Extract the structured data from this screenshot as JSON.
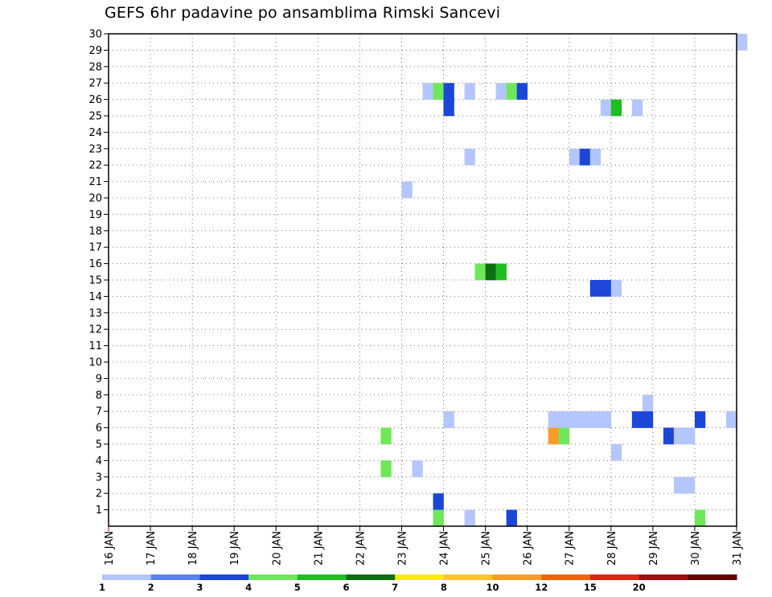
{
  "chart_data": {
    "type": "heatmap",
    "title": "GEFS 6hr padavine po ansamblima Rimski Sancevi",
    "xlabel": "",
    "ylabel": "",
    "x_tick_labels": [
      "16 JAN",
      "17 JAN",
      "18 JAN",
      "19 JAN",
      "20 JAN",
      "21 JAN",
      "22 JAN",
      "23 JAN",
      "24 JAN",
      "25 JAN",
      "26 JAN",
      "27 JAN",
      "28 JAN",
      "29 JAN",
      "30 JAN",
      "31 JAN"
    ],
    "y_tick_labels": [
      "1",
      "2",
      "3",
      "4",
      "5",
      "6",
      "7",
      "8",
      "9",
      "10",
      "11",
      "12",
      "13",
      "14",
      "15",
      "16",
      "17",
      "18",
      "19",
      "20",
      "21",
      "22",
      "23",
      "24",
      "25",
      "26",
      "27",
      "28",
      "29",
      "30"
    ],
    "xlim_days": [
      0,
      15
    ],
    "ylim": [
      0,
      30
    ],
    "grid": "dotted",
    "colorbar": {
      "position": "bottom",
      "labels": [
        "1",
        "2",
        "3",
        "4",
        "5",
        "6",
        "7",
        "8",
        "10",
        "12",
        "15",
        "20"
      ],
      "colors": [
        "#b4c6ff",
        "#5a82ee",
        "#1c46d8",
        "#6ee85a",
        "#1fbf22",
        "#0f6e14",
        "#ffec00",
        "#ffc232",
        "#ff9b28",
        "#f06400",
        "#d42a10",
        "#a01010",
        "#640000"
      ]
    },
    "cells": [
      {
        "day": 15.0,
        "member": 30,
        "value": 1
      },
      {
        "day": 7.5,
        "member": 27,
        "value": 1
      },
      {
        "day": 7.75,
        "member": 27,
        "value": 4
      },
      {
        "day": 8.0,
        "member": 27,
        "value": 3
      },
      {
        "day": 8.5,
        "member": 27,
        "value": 1
      },
      {
        "day": 9.25,
        "member": 27,
        "value": 1
      },
      {
        "day": 9.5,
        "member": 27,
        "value": 4
      },
      {
        "day": 9.75,
        "member": 27,
        "value": 3
      },
      {
        "day": 8.0,
        "member": 26,
        "value": 3
      },
      {
        "day": 11.75,
        "member": 26,
        "value": 1
      },
      {
        "day": 12.0,
        "member": 26,
        "value": 5
      },
      {
        "day": 12.5,
        "member": 26,
        "value": 1
      },
      {
        "day": 8.5,
        "member": 23,
        "value": 1
      },
      {
        "day": 11.0,
        "member": 23,
        "value": 1
      },
      {
        "day": 11.25,
        "member": 23,
        "value": 3
      },
      {
        "day": 11.5,
        "member": 23,
        "value": 1
      },
      {
        "day": 7.0,
        "member": 21,
        "value": 1
      },
      {
        "day": 8.75,
        "member": 16,
        "value": 4
      },
      {
        "day": 9.0,
        "member": 16,
        "value": 6
      },
      {
        "day": 9.25,
        "member": 16,
        "value": 5
      },
      {
        "day": 11.5,
        "member": 15,
        "value": 3
      },
      {
        "day": 11.75,
        "member": 15,
        "value": 3
      },
      {
        "day": 12.0,
        "member": 15,
        "value": 1
      },
      {
        "day": 12.75,
        "member": 8,
        "value": 1
      },
      {
        "day": 8.0,
        "member": 7,
        "value": 1
      },
      {
        "day": 10.5,
        "member": 7,
        "value": 1
      },
      {
        "day": 10.75,
        "member": 7,
        "value": 1
      },
      {
        "day": 11.0,
        "member": 7,
        "value": 1
      },
      {
        "day": 11.25,
        "member": 7,
        "value": 1
      },
      {
        "day": 11.5,
        "member": 7,
        "value": 1
      },
      {
        "day": 11.75,
        "member": 7,
        "value": 1
      },
      {
        "day": 12.5,
        "member": 7,
        "value": 3
      },
      {
        "day": 12.75,
        "member": 7,
        "value": 3
      },
      {
        "day": 14.0,
        "member": 7,
        "value": 3
      },
      {
        "day": 14.75,
        "member": 7,
        "value": 1
      },
      {
        "day": 6.5,
        "member": 6,
        "value": 4
      },
      {
        "day": 10.5,
        "member": 6,
        "value": 11
      },
      {
        "day": 10.75,
        "member": 6,
        "value": 4
      },
      {
        "day": 13.25,
        "member": 6,
        "value": 3
      },
      {
        "day": 13.5,
        "member": 6,
        "value": 1
      },
      {
        "day": 13.75,
        "member": 6,
        "value": 1
      },
      {
        "day": 12.0,
        "member": 5,
        "value": 1
      },
      {
        "day": 6.5,
        "member": 4,
        "value": 4
      },
      {
        "day": 7.25,
        "member": 4,
        "value": 1
      },
      {
        "day": 13.5,
        "member": 3,
        "value": 1
      },
      {
        "day": 13.75,
        "member": 3,
        "value": 1
      },
      {
        "day": 7.75,
        "member": 2,
        "value": 3
      },
      {
        "day": 7.75,
        "member": 1,
        "value": 4
      },
      {
        "day": 8.5,
        "member": 1,
        "value": 1
      },
      {
        "day": 9.5,
        "member": 1,
        "value": 3
      },
      {
        "day": 14.0,
        "member": 1,
        "value": 4
      }
    ]
  }
}
